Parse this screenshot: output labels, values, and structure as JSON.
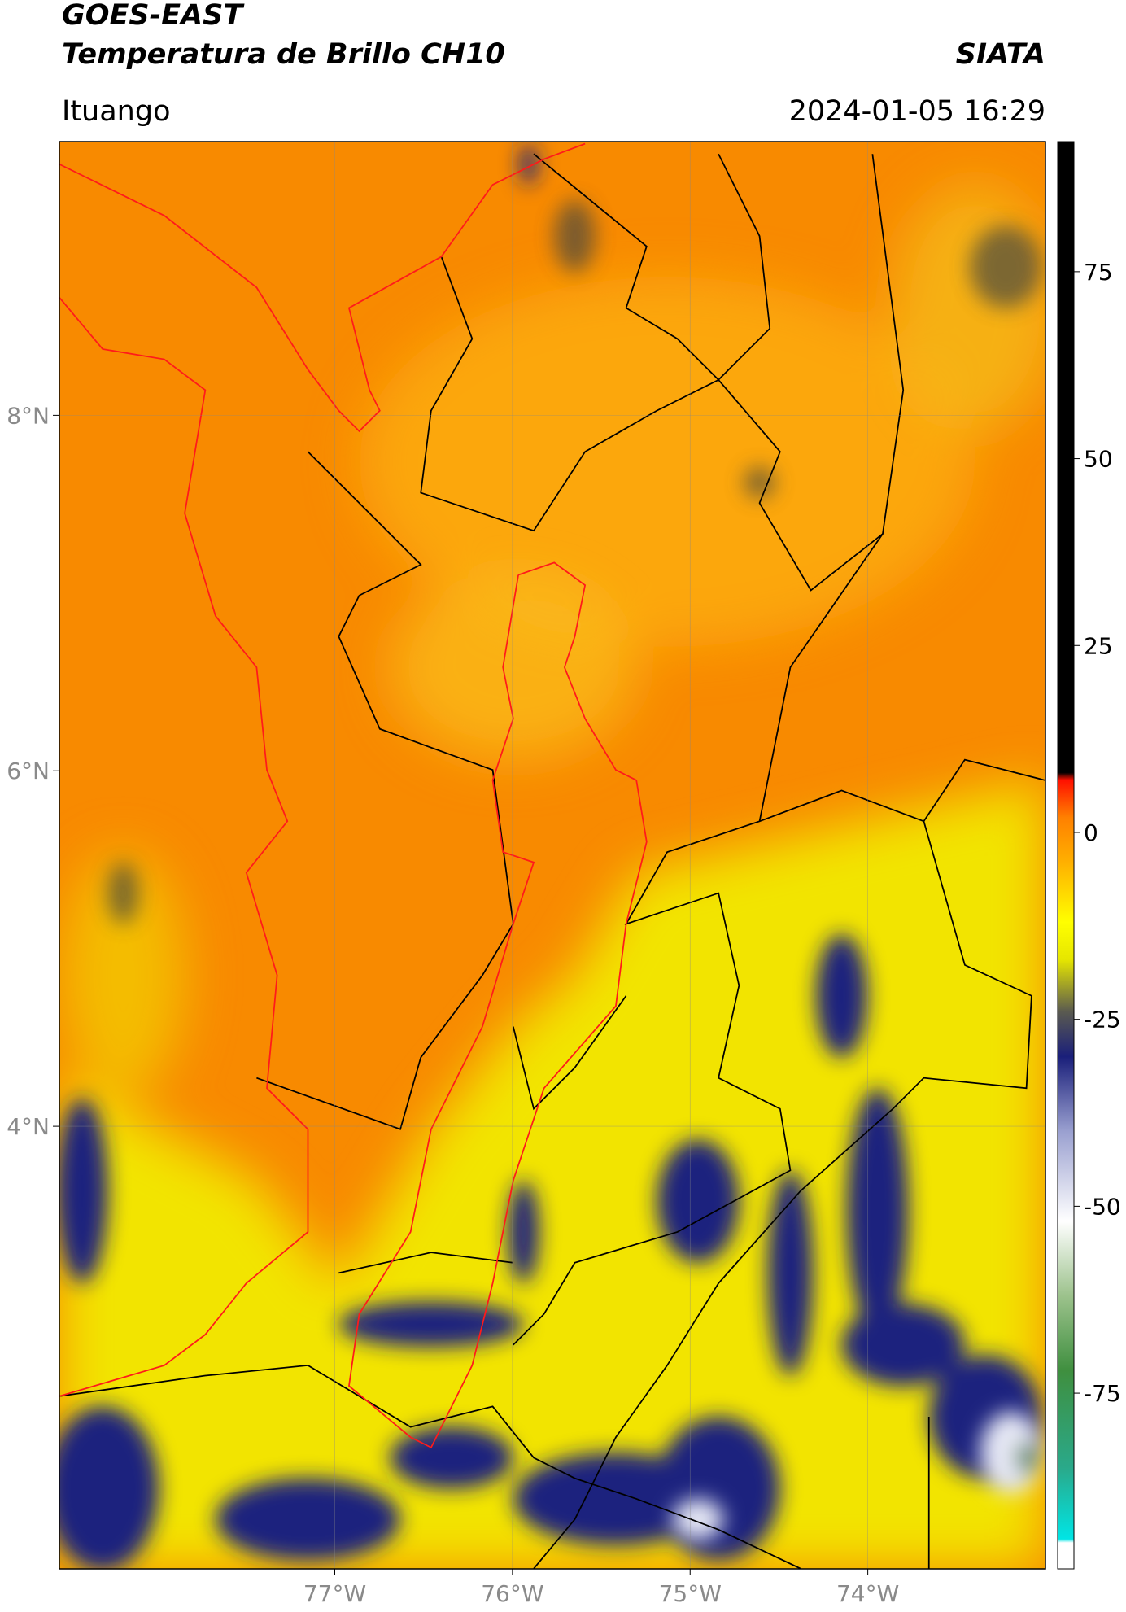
{
  "header": {
    "title": "GOES-EAST",
    "subtitle": "Temperatura de Brillo CH10",
    "brand": "SIATA",
    "location": "Ituango",
    "datetime": "2024-01-05 16:29"
  },
  "map": {
    "type": "map",
    "xlim": [
      -78.55,
      -73.0
    ],
    "ylim": [
      1.51,
      9.54
    ],
    "grid": true,
    "xticks": [
      {
        "value": -77,
        "label": "77°W"
      },
      {
        "value": -76,
        "label": "76°W"
      },
      {
        "value": -75,
        "label": "75°W"
      },
      {
        "value": -74,
        "label": "74°W"
      }
    ],
    "yticks": [
      {
        "value": 8,
        "label": "8°N"
      },
      {
        "value": 6,
        "label": "6°N"
      },
      {
        "value": 4,
        "label": "4°N"
      }
    ]
  },
  "colorbar": {
    "lim": [
      -98.5,
      92.4
    ],
    "ticks": [
      75,
      50,
      25,
      0,
      -25,
      -50,
      -75
    ],
    "stops": [
      {
        "value": -98.5,
        "color": "#ffffff"
      },
      {
        "value": -95,
        "color": "#ffffff"
      },
      {
        "value": -94.5,
        "color": "#00e5e5"
      },
      {
        "value": -85,
        "color": "#2aa98a"
      },
      {
        "value": -72,
        "color": "#3f8f3f"
      },
      {
        "value": -62,
        "color": "#9cc28c"
      },
      {
        "value": -52,
        "color": "#ffffff"
      },
      {
        "value": -40,
        "color": "#9aa0d0"
      },
      {
        "value": -30,
        "color": "#1a1f7a"
      },
      {
        "value": -24,
        "color": "#5a5a50"
      },
      {
        "value": -17,
        "color": "#e6e600"
      },
      {
        "value": -12,
        "color": "#ffff00"
      },
      {
        "value": -4,
        "color": "#ffb000"
      },
      {
        "value": 2,
        "color": "#ff8000"
      },
      {
        "value": 7,
        "color": "#ff1000"
      },
      {
        "value": 8,
        "color": "#000000"
      },
      {
        "value": 92.4,
        "color": "#000000"
      }
    ]
  }
}
